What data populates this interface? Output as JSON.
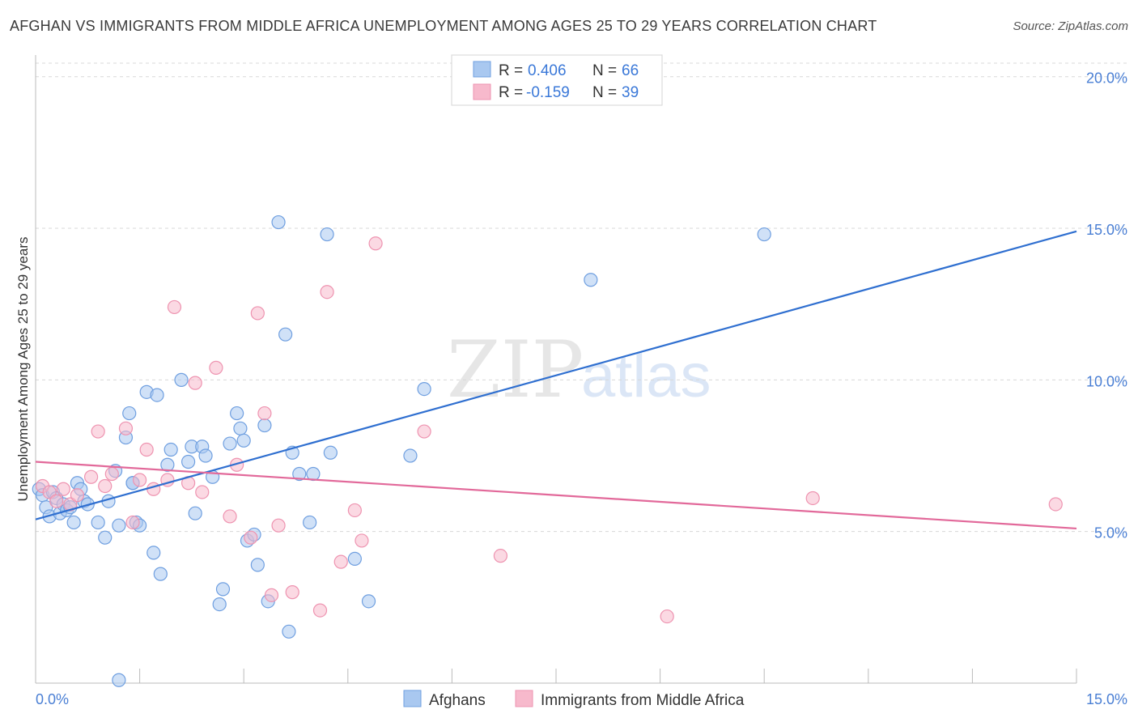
{
  "title": "AFGHAN VS IMMIGRANTS FROM MIDDLE AFRICA UNEMPLOYMENT AMONG AGES 25 TO 29 YEARS CORRELATION CHART",
  "source": "Source: ZipAtlas.com",
  "watermark": {
    "zip": "ZIP",
    "atlas": "atlas"
  },
  "legend": {
    "r_label": "R =",
    "n_label": "N =",
    "rows": [
      {
        "r": "0.406",
        "n": "66"
      },
      {
        "r": "-0.159",
        "n": "39"
      }
    ]
  },
  "colors": {
    "afghans_fill": "#a9c8f0",
    "afghans_stroke": "#6f9fe0",
    "afghans_line": "#2f6fd0",
    "middle_africa_fill": "#f7b9cc",
    "middle_africa_stroke": "#ee93b0",
    "middle_africa_line": "#e2699a",
    "tick_text": "#4a7fd4",
    "grid": "#d8d8d8"
  },
  "chart_data": {
    "type": "scatter",
    "ylabel": "Unemployment Among Ages 25 to 29 years",
    "xlim": [
      0,
      15
    ],
    "ylim": [
      0,
      20.5
    ],
    "x_ticks": [
      "0.0%",
      "15.0%"
    ],
    "y_ticks": [
      {
        "value": 5,
        "label": "5.0%"
      },
      {
        "value": 10,
        "label": "10.0%"
      },
      {
        "value": 15,
        "label": "15.0%"
      },
      {
        "value": 20,
        "label": "20.0%"
      }
    ],
    "series": [
      {
        "name": "Afghans",
        "trend": {
          "x": [
            0,
            15
          ],
          "y": [
            5.4,
            14.9
          ]
        },
        "points": [
          [
            0.05,
            6.4
          ],
          [
            0.1,
            6.2
          ],
          [
            0.15,
            5.8
          ],
          [
            0.2,
            5.5
          ],
          [
            0.25,
            6.3
          ],
          [
            0.3,
            6.1
          ],
          [
            0.35,
            5.6
          ],
          [
            0.4,
            5.9
          ],
          [
            0.45,
            5.7
          ],
          [
            0.5,
            5.8
          ],
          [
            0.55,
            5.3
          ],
          [
            0.6,
            6.6
          ],
          [
            0.65,
            6.4
          ],
          [
            0.7,
            6.0
          ],
          [
            0.75,
            5.9
          ],
          [
            0.9,
            5.3
          ],
          [
            1.0,
            4.8
          ],
          [
            1.05,
            6.0
          ],
          [
            1.15,
            7.0
          ],
          [
            1.2,
            5.2
          ],
          [
            1.3,
            8.1
          ],
          [
            1.35,
            8.9
          ],
          [
            1.4,
            6.6
          ],
          [
            1.45,
            5.3
          ],
          [
            1.5,
            5.2
          ],
          [
            1.6,
            9.6
          ],
          [
            1.7,
            4.3
          ],
          [
            1.75,
            9.5
          ],
          [
            1.8,
            3.6
          ],
          [
            1.9,
            7.2
          ],
          [
            1.95,
            7.7
          ],
          [
            2.1,
            10.0
          ],
          [
            2.2,
            7.3
          ],
          [
            2.25,
            7.8
          ],
          [
            2.3,
            5.6
          ],
          [
            2.4,
            7.8
          ],
          [
            2.45,
            7.5
          ],
          [
            2.55,
            6.8
          ],
          [
            2.65,
            2.6
          ],
          [
            2.7,
            3.1
          ],
          [
            2.8,
            7.9
          ],
          [
            2.9,
            8.9
          ],
          [
            2.95,
            8.4
          ],
          [
            3.0,
            8.0
          ],
          [
            3.05,
            4.7
          ],
          [
            3.15,
            4.9
          ],
          [
            3.2,
            3.9
          ],
          [
            3.3,
            8.5
          ],
          [
            3.35,
            2.7
          ],
          [
            3.5,
            15.2
          ],
          [
            3.6,
            11.5
          ],
          [
            3.65,
            1.7
          ],
          [
            3.7,
            7.6
          ],
          [
            3.8,
            6.9
          ],
          [
            3.95,
            5.3
          ],
          [
            4.0,
            6.9
          ],
          [
            4.2,
            14.8
          ],
          [
            4.25,
            7.6
          ],
          [
            4.6,
            4.1
          ],
          [
            4.8,
            2.7
          ],
          [
            5.4,
            7.5
          ],
          [
            5.6,
            9.7
          ],
          [
            8.0,
            13.3
          ],
          [
            10.5,
            14.8
          ],
          [
            1.2,
            0.1
          ],
          [
            1.4,
            6.6
          ]
        ]
      },
      {
        "name": "Immigrants from Middle Africa",
        "trend": {
          "x": [
            0,
            15
          ],
          "y": [
            7.3,
            5.1
          ]
        },
        "points": [
          [
            0.1,
            6.5
          ],
          [
            0.2,
            6.3
          ],
          [
            0.3,
            6.0
          ],
          [
            0.4,
            6.4
          ],
          [
            0.5,
            5.9
          ],
          [
            0.6,
            6.2
          ],
          [
            0.8,
            6.8
          ],
          [
            0.9,
            8.3
          ],
          [
            1.0,
            6.5
          ],
          [
            1.1,
            6.9
          ],
          [
            1.3,
            8.4
          ],
          [
            1.4,
            5.3
          ],
          [
            1.5,
            6.7
          ],
          [
            1.6,
            7.7
          ],
          [
            1.7,
            6.4
          ],
          [
            1.9,
            6.7
          ],
          [
            2.0,
            12.4
          ],
          [
            2.2,
            6.6
          ],
          [
            2.3,
            9.9
          ],
          [
            2.4,
            6.3
          ],
          [
            2.6,
            10.4
          ],
          [
            2.8,
            5.5
          ],
          [
            2.9,
            7.2
          ],
          [
            3.1,
            4.8
          ],
          [
            3.2,
            12.2
          ],
          [
            3.3,
            8.9
          ],
          [
            3.4,
            2.9
          ],
          [
            3.5,
            5.2
          ],
          [
            3.7,
            3.0
          ],
          [
            4.1,
            2.4
          ],
          [
            4.2,
            12.9
          ],
          [
            4.4,
            4.0
          ],
          [
            4.6,
            5.7
          ],
          [
            4.7,
            4.7
          ],
          [
            4.9,
            14.5
          ],
          [
            5.6,
            8.3
          ],
          [
            6.7,
            4.2
          ],
          [
            9.1,
            2.2
          ],
          [
            11.2,
            6.1
          ]
        ]
      }
    ],
    "extra_afghans_note": "",
    "last_middle_africa_point": [
      14.7,
      5.9
    ]
  }
}
